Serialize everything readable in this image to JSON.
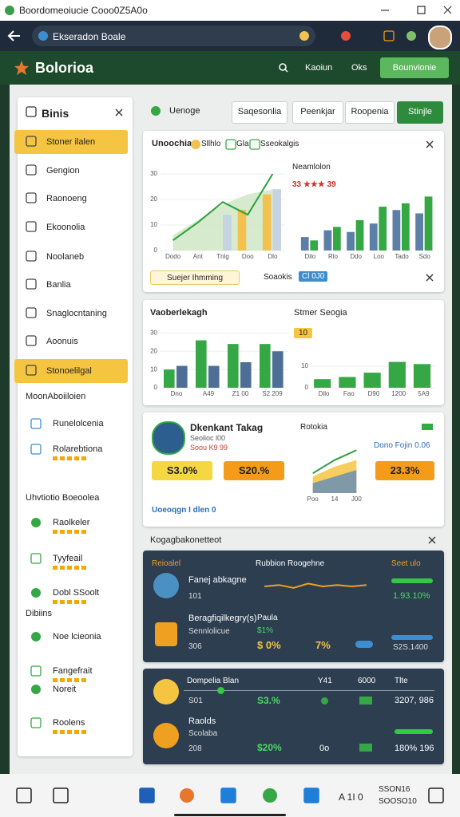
{
  "browser": {
    "tab_title": "Boordomeoiucie Cooo0Z5A0o",
    "url": "Ekseradon Boale"
  },
  "header": {
    "logo": "Bolorioa",
    "nav": [
      "Kaoiun",
      "Oks"
    ],
    "cta": "Bounvionie"
  },
  "sidebar": {
    "title": "Binis",
    "items": [
      "Stoner ilalen",
      "Gengion",
      "Raonoeng",
      "Ekoonolia",
      "Noolaneb",
      "Banlia",
      "Snaglocntaning",
      "Aoonuis",
      "Stonoelilgal"
    ],
    "groups": [
      {
        "title": "MoonAboiiloien",
        "items": [
          "Runelolcenia",
          "Rolarebtiona"
        ]
      },
      {
        "title": "Uhvtiotio Boeoolea",
        "items": [
          "Raolkeler",
          "Tyyfeail",
          "Dobl SSoolt"
        ]
      },
      {
        "title": "Dibiins",
        "items": [
          "Noe lcieonia",
          "Fangefrait",
          "Noreit",
          "Roolens"
        ]
      }
    ]
  },
  "toolbar": {
    "label": "Uenoge",
    "buttons": [
      "Saqesonlia",
      "Peenkjar",
      "Roopenia",
      "Stinjle"
    ]
  },
  "card1": {
    "title": "Unoochia",
    "chips": [
      "Sllhlo",
      "Gla",
      "Sseokalgis"
    ],
    "left_chart": {
      "ylim": [
        0,
        35
      ],
      "yticks": [
        0,
        10,
        20,
        30
      ],
      "categories": [
        "Dodo",
        "Ant",
        "Tnlg",
        "Doo",
        "Dlo"
      ],
      "series": [
        {
          "type": "area",
          "color": "#cfe8c4",
          "values": [
            6,
            12,
            18,
            22,
            24
          ]
        },
        {
          "type": "bar",
          "color": "#f2c14e",
          "values": [
            0,
            0,
            0,
            16,
            22
          ]
        },
        {
          "type": "bar",
          "color": "#c5d3e3",
          "values": [
            0,
            0,
            14,
            0,
            24
          ]
        },
        {
          "type": "line",
          "color": "#2e9e3f",
          "values": [
            4,
            11,
            19,
            14,
            30
          ]
        }
      ]
    },
    "right_title": "Neamlolon",
    "right_subtitle": "33 ★★★ 39",
    "right_chart": {
      "ylim": [
        0,
        35
      ],
      "categories": [
        "Dilo",
        "Rlo",
        "Ddo",
        "Loo",
        "Tado",
        "Sdo"
      ],
      "series": [
        {
          "type": "bar",
          "color": "#5b7fa6",
          "values": [
            8,
            12,
            11,
            16,
            24,
            22
          ]
        },
        {
          "type": "bar",
          "color": "#35a845",
          "values": [
            6,
            14,
            18,
            26,
            28,
            32
          ]
        }
      ]
    },
    "footer_chip": "Suejer Ihmming",
    "footer_label": "Soaokis",
    "footer_tag": "Cl 0J0"
  },
  "card2": {
    "title": "Vaoberlekagh",
    "left_chart": {
      "ylim": [
        0,
        35
      ],
      "yticks": [
        0,
        10,
        20,
        30
      ],
      "categories": [
        "Dno",
        "A49",
        "Z1 00",
        "S2 209"
      ],
      "series": [
        {
          "type": "bar",
          "color": "#35a845",
          "values": [
            10,
            26,
            24,
            24
          ]
        },
        {
          "type": "bar",
          "color": "#4d6f96",
          "values": [
            12,
            12,
            14,
            20
          ]
        }
      ]
    },
    "right_title": "Stmer Seogia",
    "right_tag": "10",
    "right_chart": {
      "ylim": [
        0,
        20
      ],
      "yticks": [
        0,
        10
      ],
      "categories": [
        "Dilo",
        "Fao",
        "D90",
        "1200",
        "5A9"
      ],
      "series": [
        {
          "type": "bar",
          "color": "#35a845",
          "values": [
            4,
            5,
            7,
            12,
            11
          ]
        }
      ]
    }
  },
  "card3": {
    "name": "Dkenkant Takag",
    "sub1": "Seolioc l00",
    "sub2": "Soou K9 99",
    "stats": [
      "S3.0%",
      "S20.%"
    ],
    "chart_title": "Rotokia",
    "legend": "Dono Fojin 0.06",
    "stat3": "23.3%",
    "link": "Uoeoqgn I dlen 0",
    "chart": {
      "ylim": [
        0,
        30
      ],
      "categories": [
        "Poo",
        "14",
        "J00"
      ],
      "series": [
        {
          "type": "area",
          "color": "#f5c542",
          "values": [
            10,
            16,
            20
          ]
        },
        {
          "type": "area",
          "color": "#6b8fb3",
          "values": [
            6,
            10,
            14
          ]
        },
        {
          "type": "line",
          "color": "#2e9e3f",
          "values": [
            12,
            20,
            26
          ]
        }
      ]
    }
  },
  "section_title": "Kogagbakonetteot",
  "card4": {
    "headers": [
      "Reioalel",
      "Rubbion Roogehne",
      "Seet ulo"
    ],
    "rows": [
      {
        "name": "Fanej abkagne",
        "id": "101",
        "value": "1.93.10%"
      },
      {
        "name": "Beragfiqilkegry(s)",
        "sub": "Sennlolicue",
        "id": "306",
        "col2": "Paula",
        "col3": "$1%",
        "v1": "$ 0%",
        "v2": "7%",
        "value": "S2S.1400"
      }
    ],
    "sparkline": {
      "ylim": [
        0,
        10
      ],
      "series": [
        {
          "type": "line",
          "color": "#f0a020",
          "values": [
            5,
            6,
            4,
            7,
            5,
            6,
            5,
            6
          ]
        }
      ]
    }
  },
  "card5": {
    "headers": [
      "Dompelia Blan",
      "Y41",
      "6000",
      "Tlte"
    ],
    "rows": [
      {
        "id": "S01",
        "v1": "S3.%",
        "value": "3207, 986"
      },
      {
        "name": "Raolds",
        "sub": "Scolaba",
        "id": "208",
        "v1": "$20%",
        "v2": "0o",
        "value": "180% 196"
      }
    ]
  },
  "taskbar": {
    "lang": "A 1I 0",
    "time": "SSON16",
    "date": "SOOSO10"
  }
}
